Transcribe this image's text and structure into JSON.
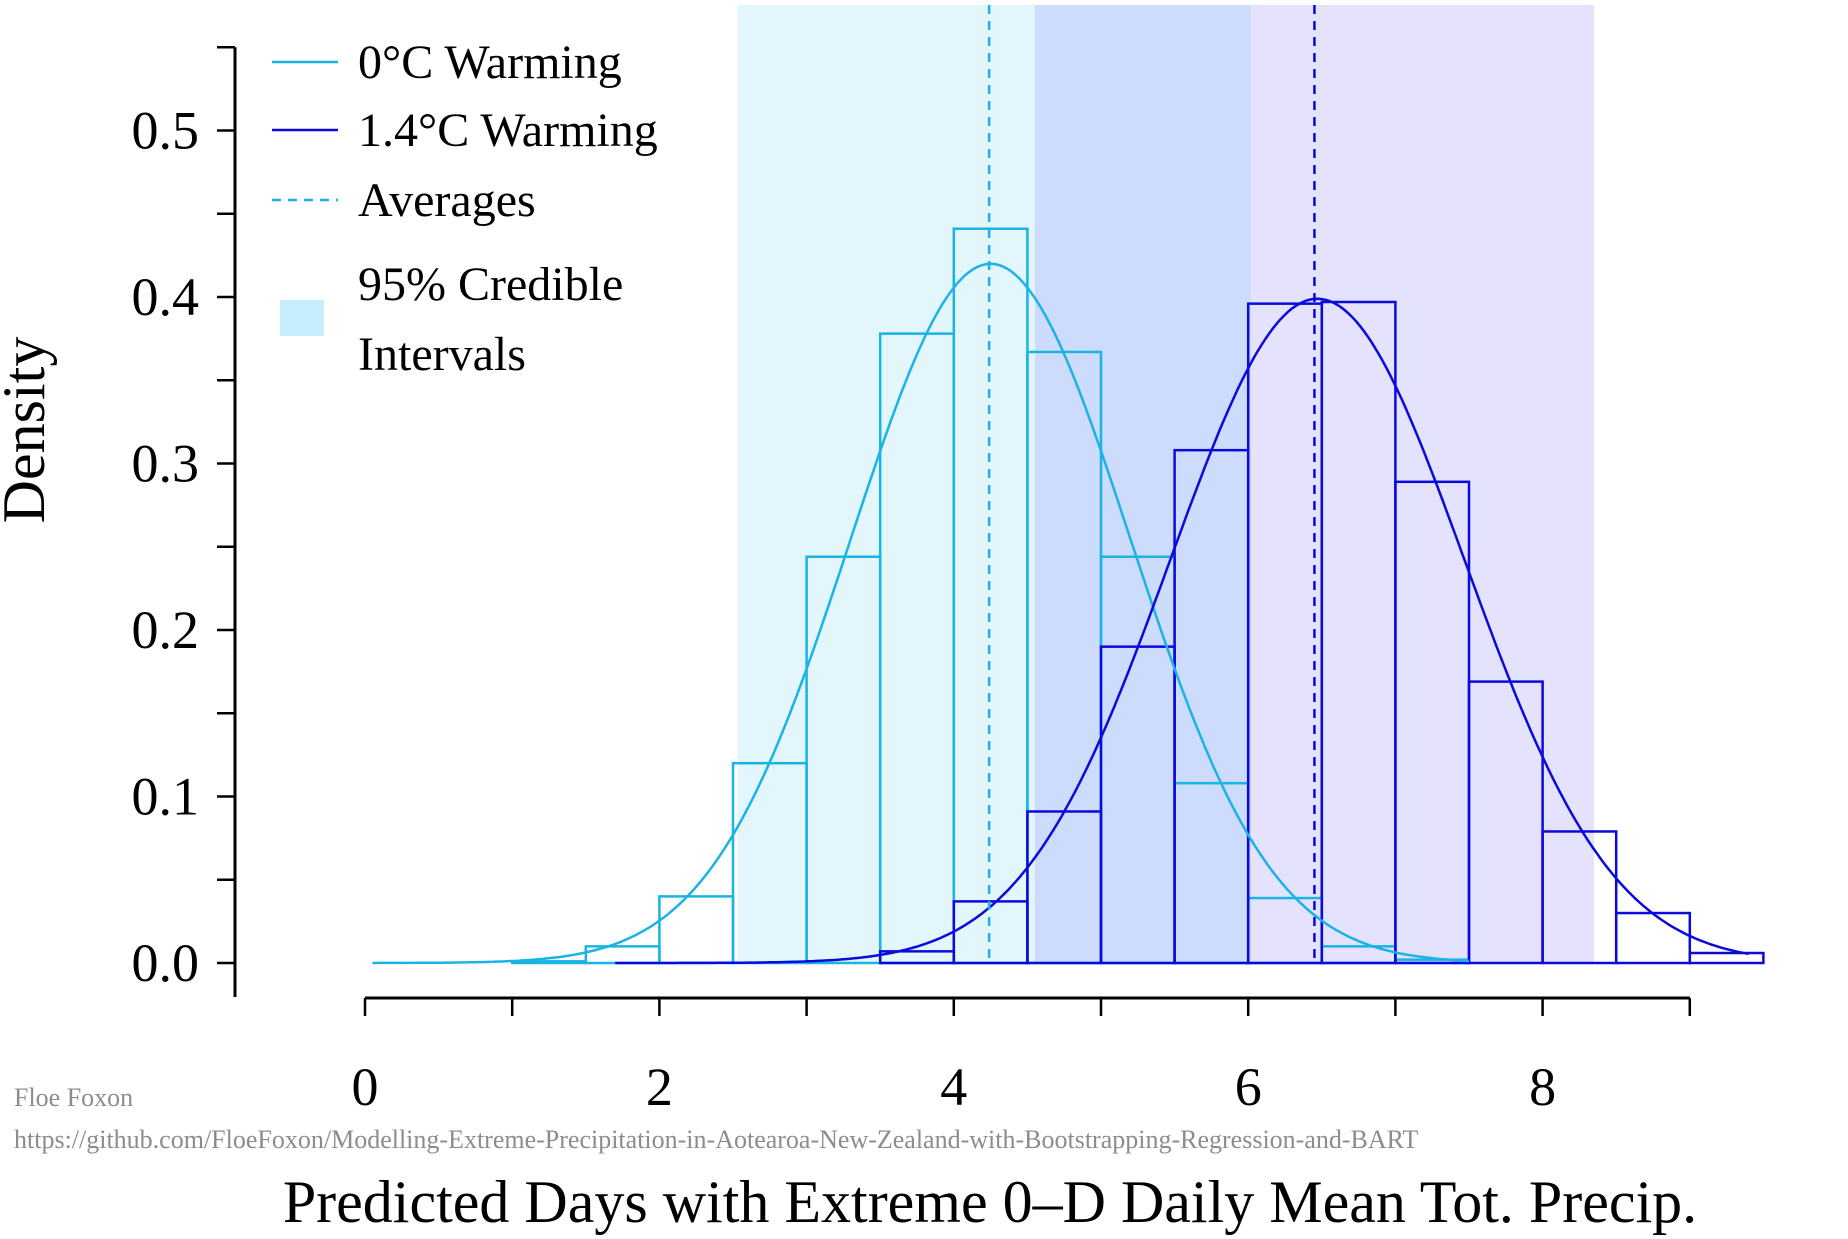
{
  "chart_data": {
    "type": "bar",
    "xlabel": "Predicted Days with Extreme 0–D Daily Mean Tot. Precip.",
    "ylabel": "Density",
    "xlim": [
      0,
      9.4
    ],
    "ylim": [
      0,
      0.55
    ],
    "x_ticks": [
      0,
      1,
      2,
      3,
      4,
      5,
      6,
      7,
      8,
      9
    ],
    "x_tick_labels": [
      {
        "value": 0,
        "label": "0"
      },
      {
        "value": 2,
        "label": "2"
      },
      {
        "value": 4,
        "label": "4"
      },
      {
        "value": 6,
        "label": "6"
      },
      {
        "value": 8,
        "label": "8"
      }
    ],
    "y_ticks": [
      0.0,
      0.05,
      0.1,
      0.15,
      0.2,
      0.25,
      0.3,
      0.35,
      0.4,
      0.45,
      0.5,
      0.55
    ],
    "y_tick_labels": [
      {
        "value": 0.0,
        "label": "0.0"
      },
      {
        "value": 0.1,
        "label": "0.1"
      },
      {
        "value": 0.2,
        "label": "0.2"
      },
      {
        "value": 0.3,
        "label": "0.3"
      },
      {
        "value": 0.4,
        "label": "0.4"
      },
      {
        "value": 0.5,
        "label": "0.5"
      }
    ],
    "bin_width": 0.5,
    "series": [
      {
        "name": "0°C Warming",
        "color": "#1ab3e6",
        "bins_start": [
          1.0,
          1.5,
          2.0,
          2.5,
          3.0,
          3.5,
          4.0,
          4.5,
          5.0,
          5.5,
          6.0,
          6.5,
          7.0
        ],
        "density": [
          0.001,
          0.01,
          0.04,
          0.12,
          0.244,
          0.378,
          0.441,
          0.367,
          0.244,
          0.108,
          0.039,
          0.01,
          0.002
        ],
        "curve_mean": 4.25,
        "curve_sd": 0.95,
        "curve_range": [
          0.05,
          7.5
        ],
        "average": 4.24,
        "credible_interval": [
          2.53,
          4.55
        ],
        "interval_color": "#e2f6fc"
      },
      {
        "name": "1.4°C Warming",
        "color": "#0a0adc",
        "bins_start": [
          3.5,
          4.0,
          4.5,
          5.0,
          5.5,
          6.0,
          6.5,
          7.0,
          7.5,
          8.0,
          8.5,
          9.0
        ],
        "density": [
          0.007,
          0.037,
          0.091,
          0.19,
          0.308,
          0.396,
          0.397,
          0.289,
          0.169,
          0.079,
          0.03,
          0.006
        ],
        "curve_mean": 6.47,
        "curve_sd": 1.0,
        "curve_range": [
          1.7,
          9.4
        ],
        "average": 6.45,
        "credible_interval": [
          6.02,
          8.35
        ],
        "interval_color": "#e4e2fc"
      }
    ],
    "overlap_interval": [
      4.55,
      6.02
    ],
    "overlap_color": "#cddcfc",
    "legend": {
      "placement": "top-left",
      "entries": [
        {
          "label": "0°C Warming",
          "style": "line",
          "color": "#1ab3e6"
        },
        {
          "label": "1.4°C Warming",
          "style": "line",
          "color": "#0a0adc"
        },
        {
          "label": "Averages",
          "style": "dashed",
          "color": "#1ab3e6"
        },
        {
          "label": "95% Credible",
          "label2": "Intervals",
          "style": "box",
          "color": "#c6eefc"
        }
      ]
    }
  },
  "credit": {
    "author": "Floe Foxon",
    "url": "https://github.com/FloeFoxon/Modelling-Extreme-Precipitation-in-Aotearoa-New-Zealand-with-Bootstrapping-Regression-and-BART"
  }
}
